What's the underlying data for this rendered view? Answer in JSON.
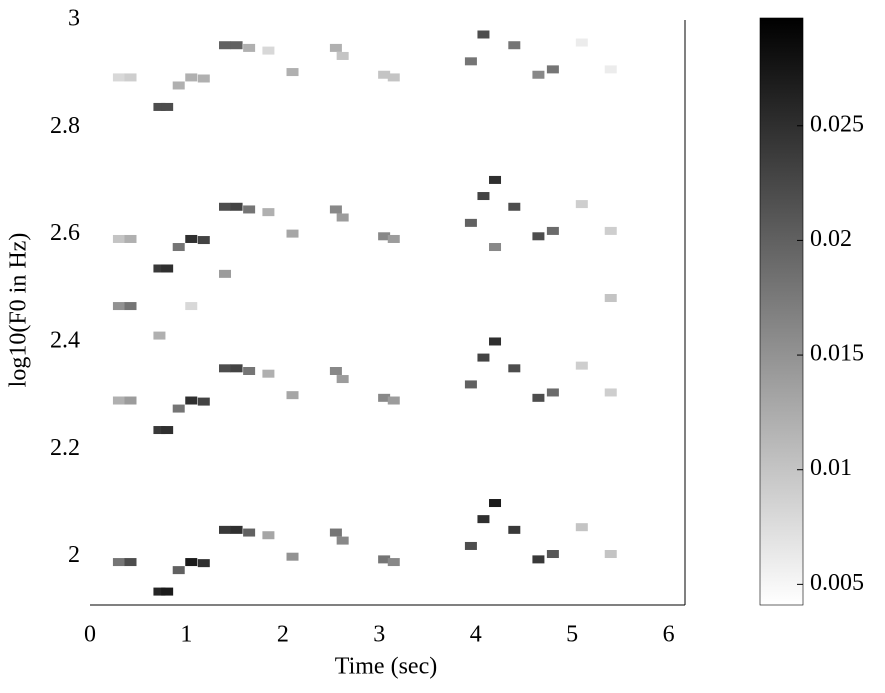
{
  "chart_data": {
    "type": "heatmap",
    "xlabel": "Time (sec)",
    "ylabel": "log10(F0 in Hz)",
    "xlim": [
      0,
      6.17
    ],
    "xticks": [
      0,
      1,
      2,
      3,
      4,
      5,
      6
    ],
    "ylim": [
      1.91,
      3.0
    ],
    "yticks": [
      2,
      2.2,
      2.4,
      2.6,
      2.8,
      3
    ],
    "clim": [
      0.0041,
      0.0297
    ],
    "cticks": [
      0.005,
      0.01,
      0.015,
      0.02,
      0.025
    ],
    "colormap": "gray_r",
    "cells": {
      "x": [
        0.3,
        0.42,
        0.72,
        0.8,
        0.92,
        1.05,
        1.18,
        1.4,
        1.52,
        1.65,
        1.85,
        2.1,
        2.55,
        2.62,
        3.05,
        3.15,
        3.95,
        4.08,
        4.2,
        4.4,
        4.65,
        4.8,
        5.1,
        5.4,
        0.3,
        0.42,
        0.72,
        0.8,
        0.92,
        1.05,
        1.18,
        1.4,
        1.52,
        1.65,
        1.85,
        2.1,
        2.55,
        2.62,
        3.05,
        3.15,
        3.95,
        4.08,
        4.2,
        4.4,
        4.65,
        4.8,
        5.1,
        5.4,
        0.3,
        0.42,
        0.72,
        0.8,
        0.92,
        1.05,
        1.18,
        1.4,
        1.52,
        1.65,
        1.85,
        2.1,
        2.55,
        2.62,
        3.05,
        3.15,
        3.95,
        4.08,
        4.2,
        4.4,
        4.65,
        4.8,
        5.1,
        5.4,
        0.3,
        0.42,
        0.72,
        0.8,
        0.92,
        1.05,
        1.18,
        1.4,
        1.52,
        1.65,
        1.85,
        2.1,
        2.55,
        2.62,
        3.05,
        3.15,
        3.95,
        4.08,
        4.4,
        4.65,
        4.8,
        5.1,
        5.4,
        0.3,
        0.42,
        0.72,
        1.05,
        1.4,
        4.2,
        5.4
      ],
      "y": [
        1.99,
        1.99,
        1.935,
        1.935,
        1.975,
        1.99,
        1.988,
        2.05,
        2.05,
        2.045,
        2.04,
        2.0,
        2.045,
        2.03,
        1.995,
        1.99,
        2.02,
        2.07,
        2.1,
        2.05,
        1.995,
        2.005,
        2.055,
        2.005,
        2.291,
        2.291,
        2.236,
        2.236,
        2.276,
        2.291,
        2.289,
        2.351,
        2.351,
        2.346,
        2.341,
        2.301,
        2.346,
        2.331,
        2.296,
        2.291,
        2.321,
        2.371,
        2.401,
        2.351,
        2.296,
        2.306,
        2.356,
        2.306,
        2.592,
        2.592,
        2.537,
        2.537,
        2.577,
        2.592,
        2.59,
        2.652,
        2.652,
        2.647,
        2.642,
        2.602,
        2.647,
        2.632,
        2.597,
        2.592,
        2.622,
        2.672,
        2.702,
        2.652,
        2.597,
        2.607,
        2.657,
        2.607,
        2.893,
        2.893,
        2.838,
        2.838,
        2.878,
        2.893,
        2.891,
        2.953,
        2.953,
        2.948,
        2.943,
        2.903,
        2.948,
        2.933,
        2.898,
        2.893,
        2.923,
        2.973,
        2.953,
        2.898,
        2.908,
        2.958,
        2.908,
        2.467,
        2.467,
        2.412,
        2.467,
        2.527,
        2.577,
        2.482
      ],
      "values": [
        0.018,
        0.022,
        0.026,
        0.027,
        0.02,
        0.027,
        0.025,
        0.024,
        0.025,
        0.02,
        0.013,
        0.015,
        0.018,
        0.016,
        0.018,
        0.016,
        0.022,
        0.025,
        0.027,
        0.024,
        0.024,
        0.021,
        0.01,
        0.01,
        0.012,
        0.014,
        0.024,
        0.025,
        0.018,
        0.025,
        0.023,
        0.022,
        0.023,
        0.018,
        0.012,
        0.013,
        0.016,
        0.014,
        0.016,
        0.014,
        0.02,
        0.023,
        0.025,
        0.022,
        0.022,
        0.019,
        0.009,
        0.009,
        0.01,
        0.012,
        0.024,
        0.025,
        0.018,
        0.025,
        0.023,
        0.022,
        0.023,
        0.018,
        0.012,
        0.013,
        0.016,
        0.014,
        0.016,
        0.014,
        0.02,
        0.023,
        0.025,
        0.022,
        0.022,
        0.019,
        0.009,
        0.009,
        0.008,
        0.009,
        0.022,
        0.022,
        0.012,
        0.012,
        0.012,
        0.02,
        0.02,
        0.012,
        0.008,
        0.012,
        0.012,
        0.01,
        0.01,
        0.01,
        0.018,
        0.022,
        0.018,
        0.016,
        0.018,
        0.006,
        0.006,
        0.015,
        0.018,
        0.012,
        0.008,
        0.014,
        0.016,
        0.01
      ]
    }
  }
}
